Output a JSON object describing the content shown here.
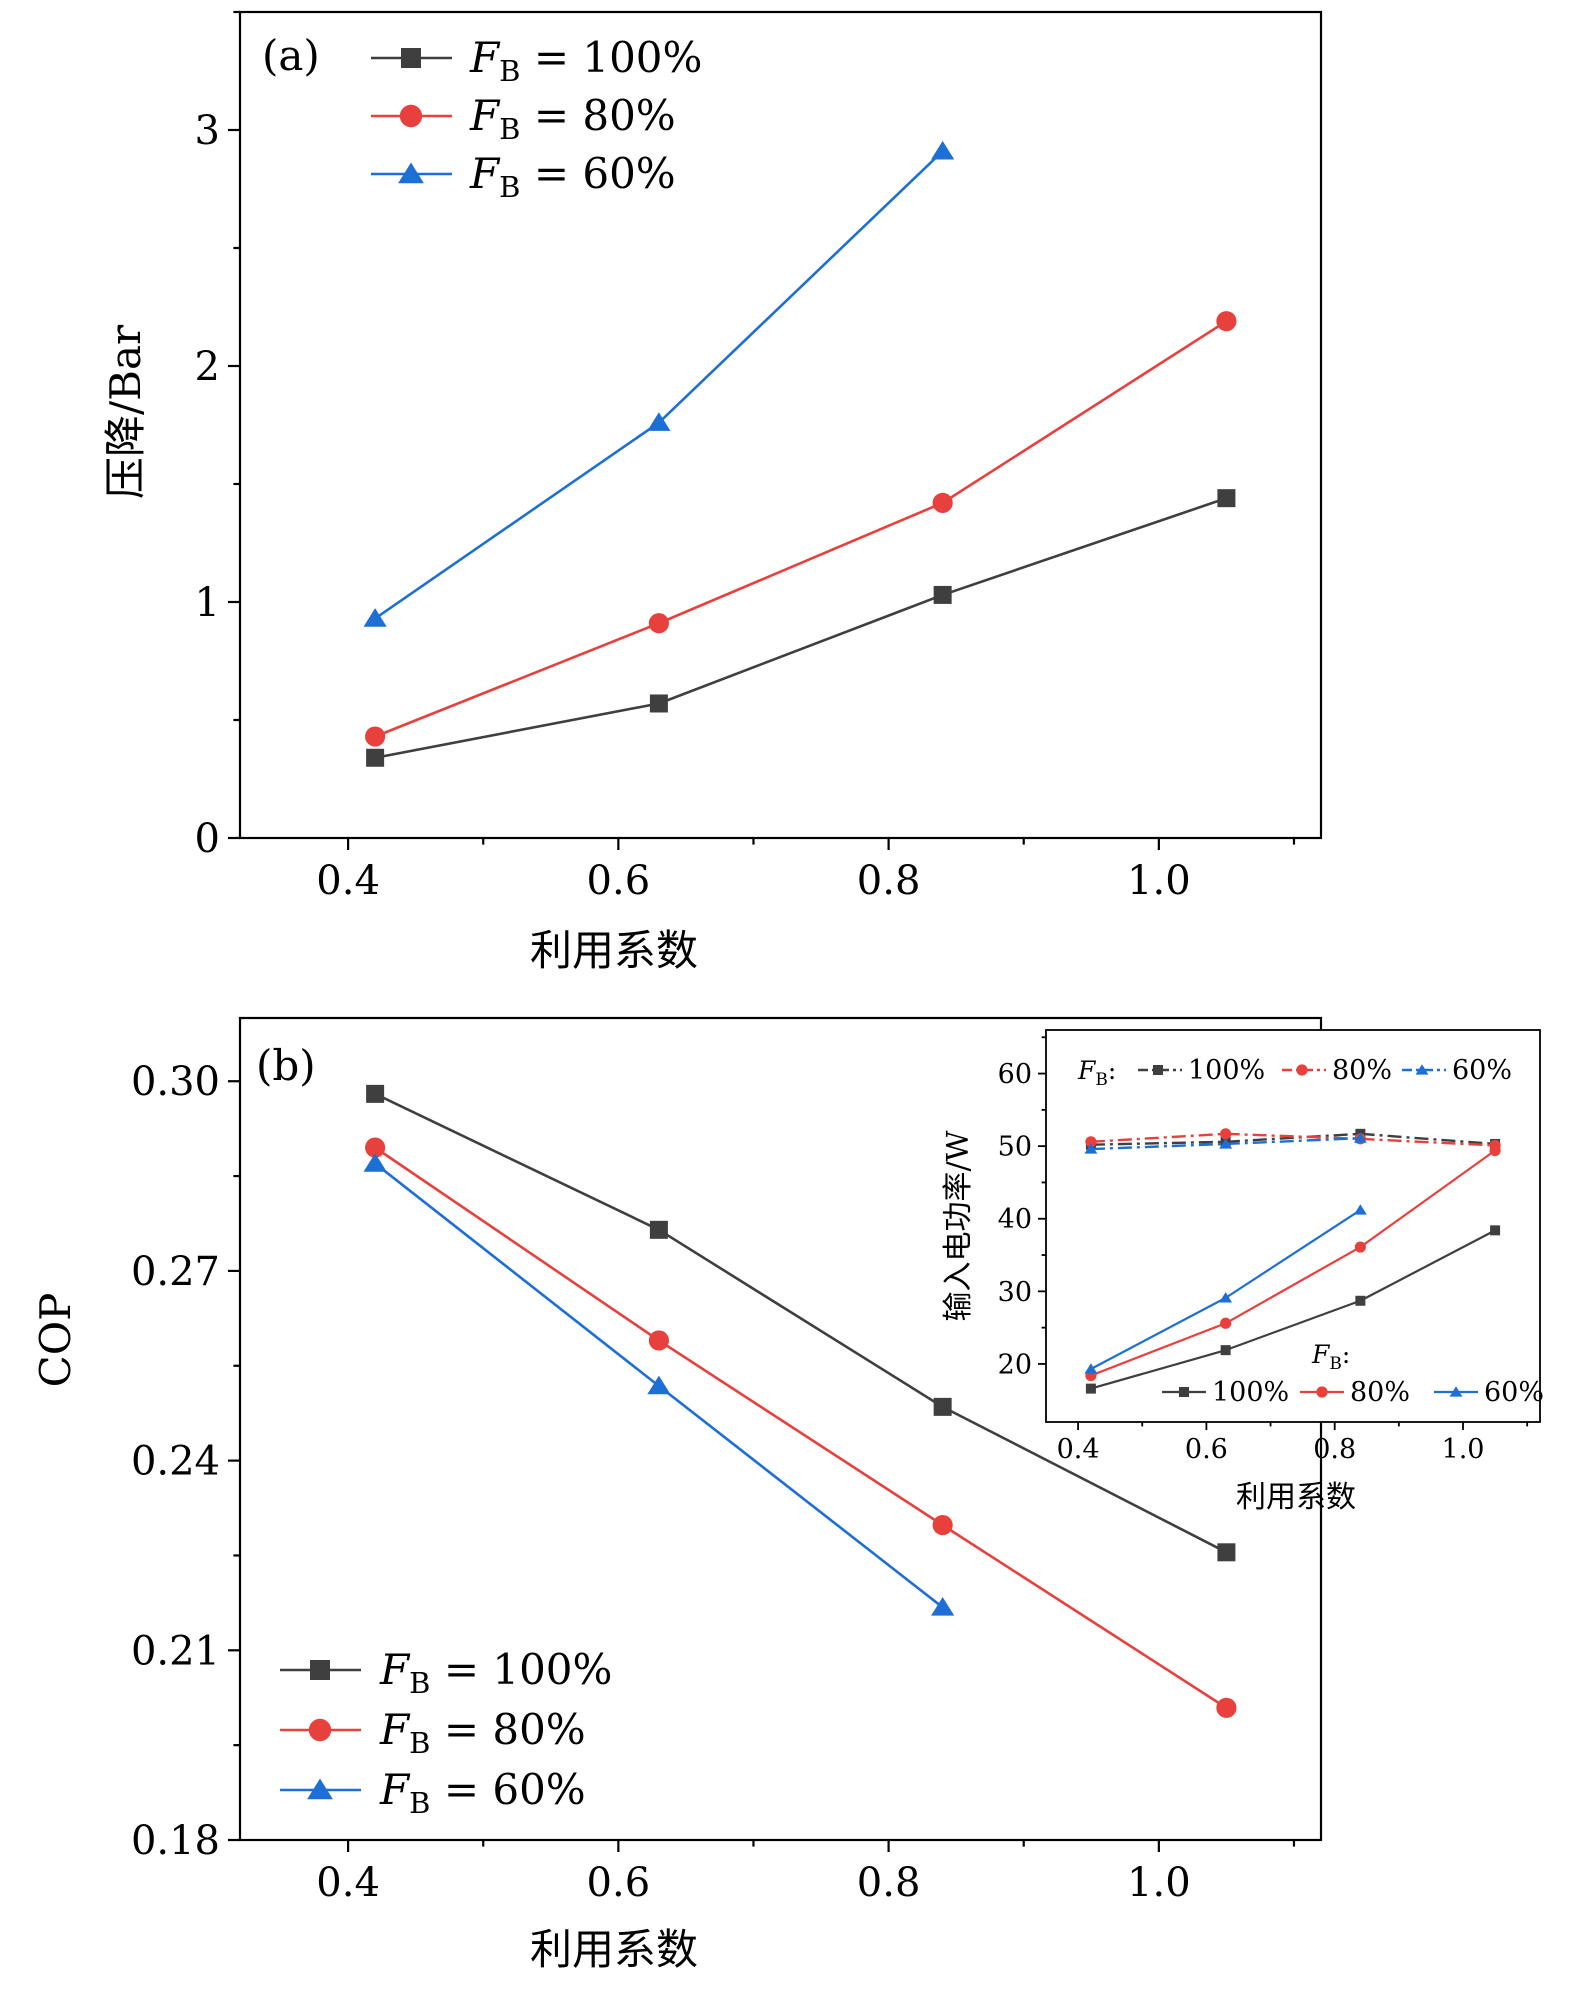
{
  "chart_data": [
    {
      "panel": "(a)",
      "type": "line",
      "title": "",
      "xlabel": "利用系数",
      "ylabel": "压降/Bar",
      "xlim": [
        0.32,
        1.12
      ],
      "ylim": [
        0,
        3.5
      ],
      "x_ticks": [
        "0.4",
        "0.6",
        "0.8",
        "1.0"
      ],
      "y_ticks": [
        "0",
        "1",
        "2",
        "3"
      ],
      "legend_position": "top-left",
      "series": [
        {
          "name": "F_B = 100%",
          "legend_label": "FB = 100%",
          "marker": "square",
          "color": "#3f3f3f",
          "x": [
            0.42,
            0.63,
            0.84,
            1.05
          ],
          "y": [
            0.34,
            0.57,
            1.03,
            1.44
          ]
        },
        {
          "name": "F_B = 80%",
          "legend_label": "FB = 80%",
          "marker": "circle",
          "color": "#e8403c",
          "x": [
            0.42,
            0.63,
            0.84,
            1.05
          ],
          "y": [
            0.43,
            0.91,
            1.42,
            2.19
          ]
        },
        {
          "name": "F_B = 60%",
          "legend_label": "FB = 60%",
          "marker": "triangle",
          "color": "#1d6fd6",
          "x": [
            0.42,
            0.63,
            0.84
          ],
          "y": [
            0.93,
            1.76,
            2.91
          ]
        }
      ]
    },
    {
      "panel": "(b)",
      "type": "line",
      "title": "",
      "xlabel": "利用系数",
      "ylabel": "COP",
      "xlim": [
        0.32,
        1.12
      ],
      "ylim": [
        0.18,
        0.31
      ],
      "x_ticks": [
        "0.4",
        "0.6",
        "0.8",
        "1.0"
      ],
      "y_ticks": [
        "0.18",
        "0.21",
        "0.24",
        "0.27",
        "0.30"
      ],
      "legend_position": "bottom-left",
      "series": [
        {
          "name": "F_B = 100%",
          "legend_label": "FB = 100%",
          "marker": "square",
          "color": "#3f3f3f",
          "x": [
            0.42,
            0.63,
            0.84,
            1.05
          ],
          "y": [
            0.298,
            0.2765,
            0.2485,
            0.2255
          ]
        },
        {
          "name": "F_B = 80%",
          "legend_label": "FB = 80%",
          "marker": "circle",
          "color": "#e8403c",
          "x": [
            0.42,
            0.63,
            0.84,
            1.05
          ],
          "y": [
            0.2895,
            0.259,
            0.2298,
            0.2009
          ]
        },
        {
          "name": "F_B = 60%",
          "legend_label": "FB = 60%",
          "marker": "triangle",
          "color": "#1d6fd6",
          "x": [
            0.42,
            0.63,
            0.84
          ],
          "y": [
            0.287,
            0.2518,
            0.2168
          ]
        }
      ]
    },
    {
      "panel": "(b) inset",
      "type": "line",
      "title": "",
      "xlabel": "利用系数",
      "ylabel": "输入电功率/W",
      "xlim": [
        0.35,
        1.12
      ],
      "ylim": [
        12,
        66
      ],
      "x_ticks": [
        "0.4",
        "0.6",
        "0.8",
        "1.0"
      ],
      "y_ticks": [
        "20",
        "30",
        "40",
        "50",
        "60"
      ],
      "legend_prefix": "FB:",
      "series": [
        {
          "name": "F_B = 100% (dash-dot)",
          "legend_label": "100%",
          "style": "dashdot",
          "marker": "square",
          "color": "#3f3f3f",
          "x": [
            0.42,
            0.63,
            0.84,
            1.05
          ],
          "y": [
            50.2,
            50.6,
            51.7,
            50.3
          ]
        },
        {
          "name": "F_B = 80% (dash-dot)",
          "legend_label": "80%",
          "style": "dashdot",
          "marker": "circle",
          "color": "#e8403c",
          "x": [
            0.42,
            0.63,
            0.84,
            1.05
          ],
          "y": [
            50.6,
            51.7,
            51.0,
            50.1
          ]
        },
        {
          "name": "F_B = 60% (dash-dot)",
          "legend_label": "60%",
          "style": "dashdot",
          "marker": "triangle",
          "color": "#1d6fd6",
          "x": [
            0.42,
            0.63,
            0.84
          ],
          "y": [
            49.6,
            50.3,
            51.1
          ]
        },
        {
          "name": "F_B = 100% (solid)",
          "legend_label": "100%",
          "style": "solid",
          "marker": "square",
          "color": "#3f3f3f",
          "x": [
            0.42,
            0.63,
            0.84,
            1.05
          ],
          "y": [
            16.6,
            21.9,
            28.7,
            38.4
          ]
        },
        {
          "name": "F_B = 80% (solid)",
          "legend_label": "80%",
          "style": "solid",
          "marker": "circle",
          "color": "#e8403c",
          "x": [
            0.42,
            0.63,
            0.84,
            1.05
          ],
          "y": [
            18.4,
            25.6,
            36.1,
            49.4
          ]
        },
        {
          "name": "F_B = 60% (solid)",
          "legend_label": "60%",
          "style": "solid",
          "marker": "triangle",
          "color": "#1d6fd6",
          "x": [
            0.42,
            0.63,
            0.84
          ],
          "y": [
            19.3,
            29.1,
            41.2
          ]
        }
      ]
    }
  ]
}
